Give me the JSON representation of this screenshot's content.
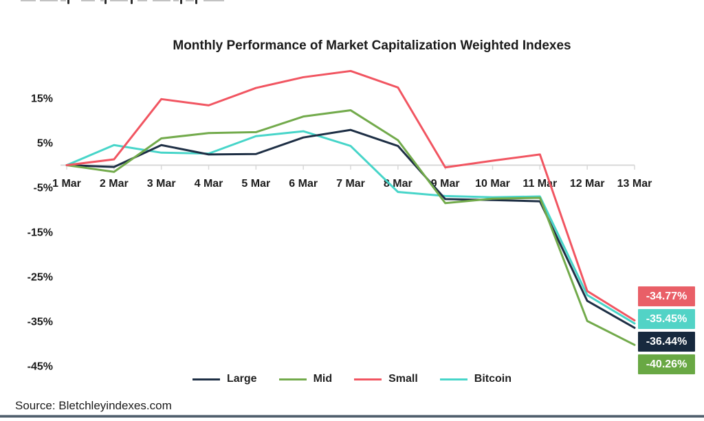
{
  "footer": {
    "source": "Source: Bletchleyindexes.com"
  },
  "chart_data": {
    "type": "line",
    "title": "Monthly Performance of Market Capitalization Weighted Indexes",
    "x_categories": [
      "1 Mar",
      "2 Mar",
      "3 Mar",
      "4 Mar",
      "5 Mar",
      "6 Mar",
      "7 Mar",
      "8 Mar",
      "9 Mar",
      "10 Mar",
      "11 Mar",
      "12 Mar",
      "13 Mar"
    ],
    "y_tick_labels": [
      "15%",
      "5%",
      "-5%",
      "-15%",
      "-25%",
      "-35%",
      "-45%"
    ],
    "y_ticks_percent": [
      15,
      5,
      -5,
      -15,
      -25,
      -35,
      -45
    ],
    "ylim": [
      -47,
      23
    ],
    "grid": false,
    "legend_position": "bottom",
    "axis_color": "#d8d8d8",
    "series": [
      {
        "name": "Large",
        "color": "#1e2f45",
        "label_bg": "#17293e",
        "values": [
          0,
          -0.4,
          4.5,
          2.4,
          2.5,
          6.2,
          7.9,
          4.3,
          -7.6,
          -7.8,
          -8.1,
          -30.4,
          -36.44
        ],
        "final_label": "-36.44%"
      },
      {
        "name": "Mid",
        "color": "#72aa4b",
        "label_bg": "#69a844",
        "values": [
          0,
          -1.5,
          6.0,
          7.2,
          7.4,
          10.9,
          12.3,
          5.6,
          -8.5,
          -7.5,
          -7.3,
          -34.9,
          -40.26
        ],
        "final_label": "-40.26%"
      },
      {
        "name": "Small",
        "color": "#f15561",
        "label_bg": "#e95f67",
        "values": [
          0,
          1.3,
          14.8,
          13.4,
          17.3,
          19.7,
          21.1,
          17.4,
          -0.5,
          1.0,
          2.4,
          -28.2,
          -34.77
        ],
        "final_label": "-34.77%"
      },
      {
        "name": "Bitcoin",
        "color": "#47d5c9",
        "label_bg": "#52d3c6",
        "values": [
          0,
          4.5,
          2.8,
          2.6,
          6.5,
          7.6,
          4.3,
          -6.0,
          -6.9,
          -7.2,
          -7.0,
          -29.1,
          -35.45
        ],
        "final_label": "-35.45%"
      }
    ],
    "draw_order": [
      "Bitcoin",
      "Large",
      "Mid",
      "Small"
    ],
    "end_label_order": [
      "Small",
      "Bitcoin",
      "Large",
      "Mid"
    ]
  }
}
